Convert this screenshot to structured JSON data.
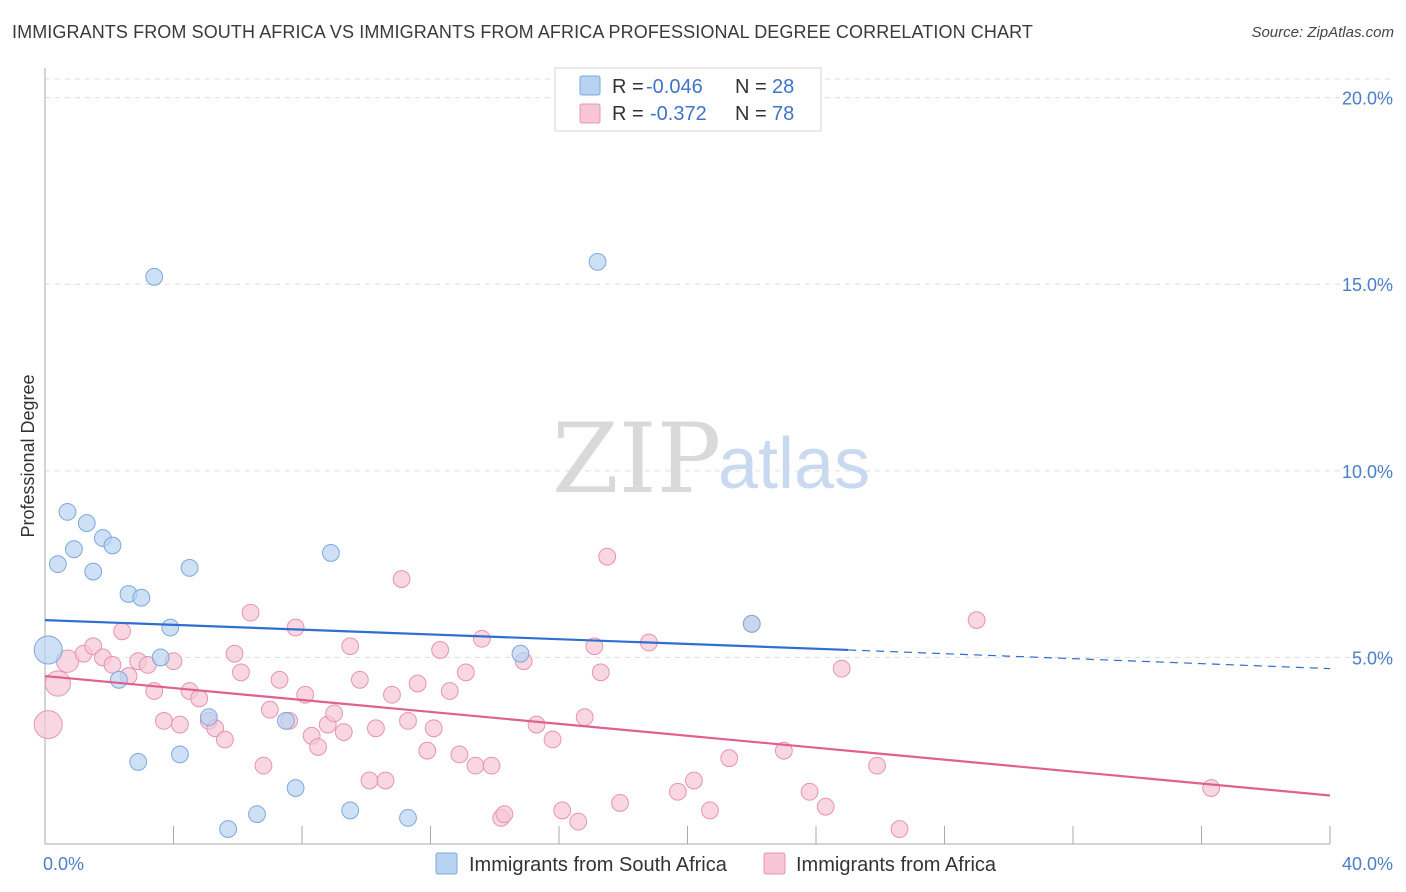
{
  "title": "IMMIGRANTS FROM SOUTH AFRICA VS IMMIGRANTS FROM AFRICA PROFESSIONAL DEGREE CORRELATION CHART",
  "source": "Source: ZipAtlas.com",
  "watermark": {
    "zip": "ZIP",
    "atlas": "atlas"
  },
  "colors": {
    "blue_fill": "#b8d3f2",
    "blue_stroke": "#7ea8dc",
    "blue_line": "#2f6fcf",
    "pink_fill": "#f7c6d6",
    "pink_stroke": "#e893b0",
    "pink_line": "#e0608f",
    "grid": "#dddddd",
    "tick_text": "#4a7fc8"
  },
  "legend": {
    "rows": [
      {
        "r_label": "R =",
        "r_value": "-0.046",
        "n_label": "N =",
        "n_value": "28"
      },
      {
        "r_label": "R =",
        "r_value": "-0.372",
        "n_label": "N =",
        "n_value": "78"
      }
    ]
  },
  "chart_data": {
    "type": "scatter",
    "title": "IMMIGRANTS FROM SOUTH AFRICA VS IMMIGRANTS FROM AFRICA PROFESSIONAL DEGREE CORRELATION CHART",
    "xlabel": "",
    "ylabel": "Professional Degree",
    "xlim": [
      0,
      40
    ],
    "ylim": [
      0,
      20.5
    ],
    "x_tick_labels": [
      "0.0%",
      "40.0%"
    ],
    "y_ticks": [
      5,
      10,
      15,
      20
    ],
    "y_tick_labels": [
      "5.0%",
      "10.0%",
      "15.0%",
      "20.0%"
    ],
    "legend_position": "top-center",
    "series": [
      {
        "name": "Immigrants from South Africa",
        "color": "blue",
        "r": -0.046,
        "n": 28,
        "trend": {
          "x0": 0,
          "y0": 6.0,
          "x1": 25,
          "y1": 5.2,
          "dash_to_x": 40,
          "dash_to_y": 4.7
        },
        "points": [
          [
            0.1,
            5.2,
            1.0
          ],
          [
            0.4,
            7.5,
            0.6
          ],
          [
            0.7,
            8.9,
            0.6
          ],
          [
            0.9,
            7.9,
            0.6
          ],
          [
            1.3,
            8.6,
            0.6
          ],
          [
            1.5,
            7.3,
            0.6
          ],
          [
            1.8,
            8.2,
            0.6
          ],
          [
            2.1,
            8.0,
            0.6
          ],
          [
            2.3,
            4.4,
            0.6
          ],
          [
            2.6,
            6.7,
            0.6
          ],
          [
            3.0,
            6.6,
            0.6
          ],
          [
            2.9,
            2.2,
            0.6
          ],
          [
            3.4,
            15.2,
            0.6
          ],
          [
            3.6,
            5.0,
            0.6
          ],
          [
            3.9,
            5.8,
            0.6
          ],
          [
            4.2,
            2.4,
            0.6
          ],
          [
            4.5,
            7.4,
            0.6
          ],
          [
            5.1,
            3.4,
            0.6
          ],
          [
            5.7,
            0.4,
            0.6
          ],
          [
            6.6,
            0.8,
            0.6
          ],
          [
            7.5,
            3.3,
            0.6
          ],
          [
            7.8,
            1.5,
            0.6
          ],
          [
            8.9,
            7.8,
            0.6
          ],
          [
            9.5,
            0.9,
            0.6
          ],
          [
            11.3,
            0.7,
            0.6
          ],
          [
            14.8,
            5.1,
            0.6
          ],
          [
            17.2,
            15.6,
            0.6
          ],
          [
            22.0,
            5.9,
            0.6
          ]
        ]
      },
      {
        "name": "Immigrants from Africa",
        "color": "pink",
        "r": -0.372,
        "n": 78,
        "trend": {
          "x0": 0,
          "y0": 4.5,
          "x1": 40,
          "y1": 1.3
        },
        "points": [
          [
            0.1,
            3.2,
            1.0
          ],
          [
            0.4,
            4.3,
            0.9
          ],
          [
            0.7,
            4.9,
            0.8
          ],
          [
            1.2,
            5.1,
            0.6
          ],
          [
            1.5,
            5.3,
            0.6
          ],
          [
            1.8,
            5.0,
            0.6
          ],
          [
            2.1,
            4.8,
            0.6
          ],
          [
            2.4,
            5.7,
            0.6
          ],
          [
            2.6,
            4.5,
            0.6
          ],
          [
            2.9,
            4.9,
            0.6
          ],
          [
            3.2,
            4.8,
            0.6
          ],
          [
            3.4,
            4.1,
            0.6
          ],
          [
            3.7,
            3.3,
            0.6
          ],
          [
            4.0,
            4.9,
            0.6
          ],
          [
            4.2,
            3.2,
            0.6
          ],
          [
            4.5,
            4.1,
            0.6
          ],
          [
            4.8,
            3.9,
            0.6
          ],
          [
            5.1,
            3.3,
            0.6
          ],
          [
            5.3,
            3.1,
            0.6
          ],
          [
            5.6,
            2.8,
            0.6
          ],
          [
            5.9,
            5.1,
            0.6
          ],
          [
            6.1,
            4.6,
            0.6
          ],
          [
            6.4,
            6.2,
            0.6
          ],
          [
            6.8,
            2.1,
            0.6
          ],
          [
            7.0,
            3.6,
            0.6
          ],
          [
            7.3,
            4.4,
            0.6
          ],
          [
            7.6,
            3.3,
            0.6
          ],
          [
            7.8,
            5.8,
            0.6
          ],
          [
            8.1,
            4.0,
            0.6
          ],
          [
            8.3,
            2.9,
            0.6
          ],
          [
            8.5,
            2.6,
            0.6
          ],
          [
            8.8,
            3.2,
            0.6
          ],
          [
            9.0,
            3.5,
            0.6
          ],
          [
            9.3,
            3.0,
            0.6
          ],
          [
            9.5,
            5.3,
            0.6
          ],
          [
            9.8,
            4.4,
            0.6
          ],
          [
            10.1,
            1.7,
            0.6
          ],
          [
            10.3,
            3.1,
            0.6
          ],
          [
            10.6,
            1.7,
            0.6
          ],
          [
            10.8,
            4.0,
            0.6
          ],
          [
            11.1,
            7.1,
            0.6
          ],
          [
            11.3,
            3.3,
            0.6
          ],
          [
            11.6,
            4.3,
            0.6
          ],
          [
            11.9,
            2.5,
            0.6
          ],
          [
            12.1,
            3.1,
            0.6
          ],
          [
            12.3,
            5.2,
            0.6
          ],
          [
            12.6,
            4.1,
            0.6
          ],
          [
            12.9,
            2.4,
            0.6
          ],
          [
            13.1,
            4.6,
            0.6
          ],
          [
            13.4,
            2.1,
            0.6
          ],
          [
            13.6,
            5.5,
            0.6
          ],
          [
            13.9,
            2.1,
            0.6
          ],
          [
            14.2,
            0.7,
            0.6
          ],
          [
            14.3,
            0.8,
            0.6
          ],
          [
            14.9,
            4.9,
            0.6
          ],
          [
            15.3,
            3.2,
            0.6
          ],
          [
            15.8,
            2.8,
            0.6
          ],
          [
            16.1,
            0.9,
            0.6
          ],
          [
            16.6,
            0.6,
            0.6
          ],
          [
            16.8,
            3.4,
            0.6
          ],
          [
            17.1,
            5.3,
            0.6
          ],
          [
            17.3,
            4.6,
            0.6
          ],
          [
            17.5,
            7.7,
            0.6
          ],
          [
            17.9,
            1.1,
            0.6
          ],
          [
            18.8,
            5.4,
            0.6
          ],
          [
            19.7,
            1.4,
            0.6
          ],
          [
            20.2,
            1.7,
            0.6
          ],
          [
            20.7,
            0.9,
            0.6
          ],
          [
            21.3,
            2.3,
            0.6
          ],
          [
            22.0,
            5.9,
            0.6
          ],
          [
            23.0,
            2.5,
            0.6
          ],
          [
            23.8,
            1.4,
            0.6
          ],
          [
            24.3,
            1.0,
            0.6
          ],
          [
            24.8,
            4.7,
            0.6
          ],
          [
            25.9,
            2.1,
            0.6
          ],
          [
            26.6,
            0.4,
            0.6
          ],
          [
            29.0,
            6.0,
            0.6
          ],
          [
            36.3,
            1.5,
            0.6
          ]
        ]
      }
    ]
  }
}
